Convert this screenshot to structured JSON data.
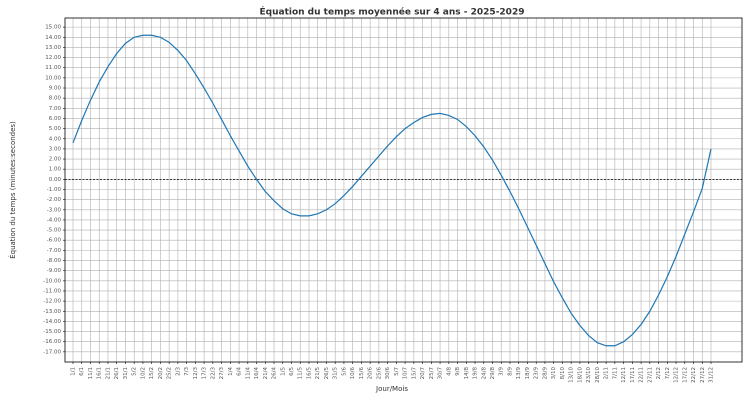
{
  "chart_data": {
    "type": "line",
    "title": "Équation du temps moyennée sur 4 ans - 2025-2029",
    "xlabel": "Jour/Mois",
    "ylabel": "Équation du temps (minutes:secondes)",
    "categories": [
      "1/1",
      "6/1",
      "11/1",
      "16/1",
      "21/1",
      "26/1",
      "31/1",
      "5/2",
      "10/2",
      "15/2",
      "20/2",
      "25/2",
      "2/3",
      "7/3",
      "12/3",
      "17/3",
      "22/3",
      "27/3",
      "1/4",
      "6/4",
      "11/4",
      "16/4",
      "21/4",
      "26/4",
      "1/5",
      "6/5",
      "11/5",
      "16/5",
      "21/5",
      "26/5",
      "31/5",
      "5/6",
      "10/6",
      "15/6",
      "20/6",
      "25/6",
      "30/6",
      "5/7",
      "10/7",
      "15/7",
      "20/7",
      "25/7",
      "30/7",
      "4/8",
      "9/8",
      "14/8",
      "19/8",
      "24/8",
      "29/8",
      "3/9",
      "8/9",
      "13/9",
      "18/9",
      "23/9",
      "28/9",
      "3/10",
      "8/10",
      "13/10",
      "18/10",
      "23/10",
      "28/10",
      "2/11",
      "7/11",
      "12/11",
      "17/11",
      "22/11",
      "27/11",
      "2/12",
      "7/12",
      "12/12",
      "17/12",
      "22/12",
      "27/12",
      "31/12"
    ],
    "series": [
      {
        "color": "#1f77b4",
        "values": [
          3.6,
          5.8,
          7.8,
          9.6,
          11.1,
          12.4,
          13.4,
          14.0,
          14.2,
          14.2,
          14.0,
          13.5,
          12.7,
          11.7,
          10.4,
          9.0,
          7.5,
          5.9,
          4.3,
          2.8,
          1.3,
          0.0,
          -1.2,
          -2.1,
          -2.9,
          -3.4,
          -3.6,
          -3.6,
          -3.4,
          -3.0,
          -2.4,
          -1.6,
          -0.7,
          0.3,
          1.3,
          2.3,
          3.3,
          4.2,
          5.0,
          5.6,
          6.1,
          6.4,
          6.5,
          6.3,
          5.9,
          5.2,
          4.3,
          3.2,
          1.9,
          0.4,
          -1.2,
          -2.9,
          -4.7,
          -6.5,
          -8.3,
          -10.1,
          -11.7,
          -13.2,
          -14.4,
          -15.4,
          -16.1,
          -16.4,
          -16.4,
          -16.0,
          -15.3,
          -14.3,
          -13.0,
          -11.4,
          -9.6,
          -7.6,
          -5.4,
          -3.2,
          -0.9,
          3.0
        ]
      }
    ],
    "reference_line": 0,
    "ylim": [
      -18,
      15.9
    ],
    "yticks": [
      {
        "value": -17,
        "label": "-17.00"
      },
      {
        "value": -16,
        "label": "-16.00"
      },
      {
        "value": -15,
        "label": "-15.00"
      },
      {
        "value": -14,
        "label": "-14.00"
      },
      {
        "value": -13,
        "label": "-13.00"
      },
      {
        "value": -12,
        "label": "-12.00"
      },
      {
        "value": -11,
        "label": "-11.00"
      },
      {
        "value": -10,
        "label": "-10.00"
      },
      {
        "value": -9,
        "label": "-9.00"
      },
      {
        "value": -8,
        "label": "-8.00"
      },
      {
        "value": -7,
        "label": "-7.00"
      },
      {
        "value": -6,
        "label": "-6.00"
      },
      {
        "value": -5,
        "label": "-5.00"
      },
      {
        "value": -4,
        "label": "-4.00"
      },
      {
        "value": -3,
        "label": "-3.00"
      },
      {
        "value": -2,
        "label": "-2.00"
      },
      {
        "value": -1,
        "label": "-1.00"
      },
      {
        "value": 0,
        "label": "0.00"
      },
      {
        "value": 1,
        "label": "1.00"
      },
      {
        "value": 2,
        "label": "2.00"
      },
      {
        "value": 3,
        "label": "3.00"
      },
      {
        "value": 4,
        "label": "4.00"
      },
      {
        "value": 5,
        "label": "5.00"
      },
      {
        "value": 6,
        "label": "6.00"
      },
      {
        "value": 7,
        "label": "7.00"
      },
      {
        "value": 8,
        "label": "8.00"
      },
      {
        "value": 9,
        "label": "9.00"
      },
      {
        "value": 10,
        "label": "10.00"
      },
      {
        "value": 11,
        "label": "11.00"
      },
      {
        "value": 12,
        "label": "12.00"
      },
      {
        "value": 13,
        "label": "13.00"
      },
      {
        "value": 14,
        "label": "14.00"
      },
      {
        "value": 15,
        "label": "15.00"
      }
    ],
    "grid": true
  }
}
